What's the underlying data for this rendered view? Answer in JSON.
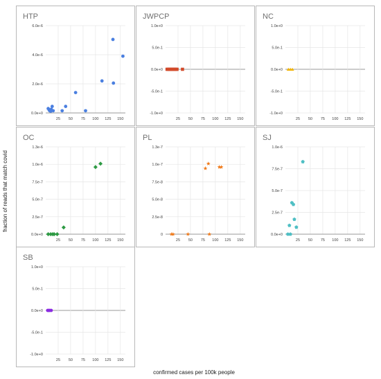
{
  "ylabel": "fraction of reads that match covid",
  "xlabel": "confirmed cases per 100k people",
  "chart_data": [
    {
      "type": "scatter",
      "title": "HTP",
      "xlabel": "",
      "ylabel": "",
      "xlim": [
        0,
        160
      ],
      "ylim": [
        0,
        6e-06
      ],
      "grid": true,
      "xticks": [
        "25",
        "50",
        "75",
        "100",
        "125",
        "150"
      ],
      "yticks": [
        "0.0e+0",
        "2.0e-6",
        "4.0e-6",
        "6.0e-6"
      ],
      "marker": "circle",
      "color": "#4a7fe0",
      "points": [
        [
          5,
          3e-07
        ],
        [
          7,
          2e-07
        ],
        [
          8,
          1.5e-07
        ],
        [
          9,
          2e-07
        ],
        [
          10,
          1.2e-07
        ],
        [
          11,
          2.5e-07
        ],
        [
          13,
          4.5e-07
        ],
        [
          15,
          1.5e-07
        ],
        [
          33,
          1.5e-07
        ],
        [
          40,
          4.5e-07
        ],
        [
          60,
          1.4e-06
        ],
        [
          80,
          1.5e-07
        ],
        [
          113,
          2.2e-06
        ],
        [
          135,
          5.05e-06
        ],
        [
          136,
          2.05e-06
        ],
        [
          155,
          3.9e-06
        ]
      ]
    },
    {
      "type": "scatter",
      "title": "JWPCP",
      "xlabel": "",
      "ylabel": "",
      "xlim": [
        0,
        160
      ],
      "ylim": [
        -1,
        1
      ],
      "grid": true,
      "xticks": [
        "25",
        "50",
        "75",
        "100",
        "125",
        "150"
      ],
      "yticks": [
        "-1.0e+0",
        "-5.0e-1",
        "0.0e+0",
        "5.0e-1",
        "1.0e+0"
      ],
      "marker": "square",
      "color": "#d24a2a",
      "points": [
        [
          3,
          0
        ],
        [
          5,
          0
        ],
        [
          7,
          0
        ],
        [
          9,
          0
        ],
        [
          11,
          0
        ],
        [
          13,
          0
        ],
        [
          15,
          0
        ],
        [
          17,
          0
        ],
        [
          19,
          0
        ],
        [
          21,
          0
        ],
        [
          23,
          0
        ],
        [
          34,
          0
        ]
      ]
    },
    {
      "type": "scatter",
      "title": "NC",
      "xlabel": "",
      "ylabel": "",
      "xlim": [
        0,
        160
      ],
      "ylim": [
        -1,
        1
      ],
      "grid": true,
      "xticks": [
        "25",
        "50",
        "75",
        "100",
        "125",
        "150"
      ],
      "yticks": [
        "-1.0e+0",
        "-5.0e-1",
        "0.0e+0",
        "5.0e-1",
        "1.0e+0"
      ],
      "marker": "triangle",
      "color": "#f2b400",
      "points": [
        [
          6,
          0
        ],
        [
          10,
          0
        ],
        [
          14,
          0
        ]
      ]
    },
    {
      "type": "scatter",
      "title": "OC",
      "xlabel": "",
      "ylabel": "",
      "xlim": [
        0,
        160
      ],
      "ylim": [
        0,
        1.3e-06
      ],
      "grid": true,
      "xticks": [
        "25",
        "50",
        "75",
        "100",
        "125",
        "150"
      ],
      "yticks": [
        "0.0e+0",
        "2.5e-7",
        "5.0e-7",
        "7.5e-7",
        "1.0e-6",
        "1.3e-6"
      ],
      "marker": "diamond",
      "color": "#2e9a44",
      "points": [
        [
          5,
          0
        ],
        [
          10,
          0
        ],
        [
          14,
          0
        ],
        [
          17,
          0
        ],
        [
          23,
          0
        ],
        [
          36,
          1e-07
        ],
        [
          100,
          1e-06
        ],
        [
          110,
          1.05e-06
        ]
      ]
    },
    {
      "type": "scatter",
      "title": "PL",
      "xlabel": "",
      "ylabel": "",
      "xlim": [
        0,
        160
      ],
      "ylim": [
        0,
        1.3e-07
      ],
      "grid": true,
      "xticks": [
        "25",
        "50",
        "75",
        "100",
        "125",
        "150"
      ],
      "yticks": [
        "0",
        "2.5e-8",
        "5.0e-8",
        "7.5e-8",
        "1.0e-7",
        "1.3e-7"
      ],
      "marker": "star",
      "color": "#f07a1a",
      "points": [
        [
          12,
          0
        ],
        [
          15,
          0
        ],
        [
          45,
          0
        ],
        [
          80,
          9.8e-08
        ],
        [
          86,
          1.05e-07
        ],
        [
          108,
          1e-07
        ],
        [
          112,
          1e-07
        ],
        [
          88,
          0
        ]
      ]
    },
    {
      "type": "scatter",
      "title": "SJ",
      "xlabel": "",
      "ylabel": "",
      "xlim": [
        0,
        160
      ],
      "ylim": [
        0,
        1e-06
      ],
      "grid": true,
      "xticks": [
        "25",
        "50",
        "75",
        "100",
        "125",
        "150"
      ],
      "yticks": [
        "0.0e+0",
        "2.5e-7",
        "5.0e-7",
        "7.5e-7",
        "1.0e-6"
      ],
      "marker": "pentagon",
      "color": "#4fbfc4",
      "points": [
        [
          5,
          0
        ],
        [
          8,
          1e-07
        ],
        [
          10,
          0
        ],
        [
          13,
          3.6e-07
        ],
        [
          16,
          3.4e-07
        ],
        [
          18,
          1.7e-07
        ],
        [
          22,
          8e-08
        ],
        [
          35,
          8.3e-07
        ]
      ]
    },
    {
      "type": "scatter",
      "title": "SB",
      "xlabel": "",
      "ylabel": "",
      "xlim": [
        0,
        160
      ],
      "ylim": [
        -1,
        1
      ],
      "grid": true,
      "xticks": [
        "25",
        "50",
        "75",
        "100",
        "125",
        "150"
      ],
      "yticks": [
        "-1.0e+0",
        "-5.0e-1",
        "0.0e+0",
        "5.0e-1",
        "1.0e+0"
      ],
      "marker": "circle",
      "color": "#8b2be2",
      "points": [
        [
          4,
          0
        ],
        [
          6,
          0
        ],
        [
          8,
          0
        ],
        [
          11,
          0
        ]
      ]
    }
  ]
}
